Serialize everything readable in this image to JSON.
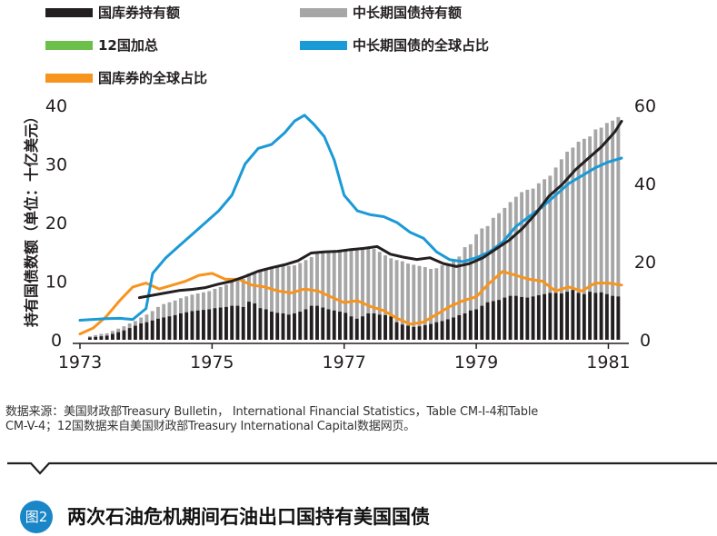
{
  "chart_data": {
    "type": "bar",
    "title": "两次石油危机期间石油出口国持有美国国债",
    "figure_label": "图2",
    "ylabel_left": "持有国债数额（单位：十亿美元）",
    "y_left_range": [
      0,
      40
    ],
    "y_left_ticks": [
      "0",
      "10",
      "20",
      "30",
      "40"
    ],
    "y_right_range": [
      0,
      60
    ],
    "y_right_ticks": [
      "0",
      "20",
      "40",
      "60"
    ],
    "x_range": [
      1973,
      1981.2
    ],
    "x_ticks": [
      "1973",
      "1975",
      "1977",
      "1979",
      "1981"
    ],
    "legend": [
      {
        "key": "treasury_bills",
        "label": "国库券持有额",
        "color": "#231f20",
        "shape": "bar"
      },
      {
        "key": "long_term",
        "label": "中长期国债持有额",
        "color": "#a6a6a6",
        "shape": "bar"
      },
      {
        "key": "total_12",
        "label": "12国加总",
        "color": "#6cbf4a",
        "shape": "bar"
      },
      {
        "key": "lt_share",
        "label": "中长期国债的全球占比",
        "color": "#1a9ad6",
        "shape": "bar"
      },
      {
        "key": "tb_share",
        "label": "国库券的全球占比",
        "color": "#f7941d",
        "shape": "bar"
      }
    ],
    "series": [
      {
        "name": "国库券持有额",
        "axis": "left",
        "type": "stacked-bar",
        "values": [
          0.4,
          0.5,
          0.6,
          0.7,
          1,
          1.3,
          1.6,
          2,
          2.4,
          2.8,
          3,
          3.3,
          3.6,
          3.8,
          4,
          4.2,
          4.5,
          4.7,
          4.9,
          5,
          5.1,
          5.2,
          5.4,
          5.5,
          5.6,
          5.8,
          5.8,
          5.6,
          6.5,
          6.2,
          5.4,
          5.2,
          4.8,
          4.6,
          4.5,
          4.3,
          4.5,
          4.8,
          5.2,
          5.8,
          5.8,
          5.5,
          5.2,
          5.0,
          4.8,
          4.6,
          4.0,
          3.6,
          4.0,
          4.5,
          4.5,
          4.3,
          4.2,
          4.0,
          3.0,
          2.6,
          2.4,
          2.2,
          2.3,
          2.5,
          2.7,
          3.0,
          3.2,
          3.5,
          3.8,
          4.2,
          4.5,
          5.0,
          5.2,
          5.8,
          6.4,
          6.6,
          6.8,
          7.2,
          7.5,
          7.5,
          7.3,
          7.2,
          7.4,
          7.6,
          7.8,
          8.0,
          8.0,
          7.9,
          8.2,
          8.5,
          8.0,
          7.8,
          8.2,
          8.0,
          8.1,
          7.8,
          7.5,
          7.4
        ]
      },
      {
        "name": "中长期国债持有额",
        "axis": "left",
        "type": "stacked-bar",
        "values": [
          0.2,
          0.3,
          0.4,
          0.4,
          0.5,
          0.6,
          0.7,
          0.8,
          0.8,
          1,
          1.3,
          1.6,
          2,
          2.3,
          2.4,
          2.5,
          2.6,
          2.7,
          2.8,
          2.9,
          3,
          3.1,
          3.3,
          3.5,
          3.8,
          4.1,
          4.4,
          4.8,
          4.8,
          5.3,
          6.4,
          6.9,
          7.6,
          7.9,
          8.1,
          8.3,
          8.2,
          8.3,
          8.4,
          8.3,
          8.9,
          9.4,
          9.8,
          10.1,
          10.4,
          10.7,
          11.4,
          12.0,
          11.7,
          11.2,
          11.0,
          10.7,
          10.2,
          9.9,
          10.6,
          10.8,
          10.6,
          10.6,
          10.3,
          9.9,
          9.4,
          9.2,
          9.5,
          9.5,
          9.8,
          10.0,
          11.3,
          11.3,
          12.8,
          13.2,
          13.0,
          14.2,
          14.8,
          15.3,
          16.0,
          16.9,
          17.9,
          18.4,
          18.4,
          19.1,
          19.6,
          20.0,
          21.4,
          22.9,
          23.9,
          24.3,
          25.8,
          26.5,
          26.5,
          27.9,
          28.1,
          29.2,
          29.9,
          30.6
        ]
      },
      {
        "name": "12国加总",
        "axis": "left",
        "type": "line",
        "x": [
          1973.9,
          1974.1,
          1974.3,
          1974.5,
          1974.7,
          1974.9,
          1975.1,
          1975.3,
          1975.5,
          1975.7,
          1975.9,
          1976.1,
          1976.3,
          1976.5,
          1976.7,
          1976.9,
          1977.1,
          1977.3,
          1977.5,
          1977.7,
          1977.9,
          1978.1,
          1978.3,
          1978.5,
          1978.7,
          1978.9,
          1979.1,
          1979.3,
          1979.5,
          1979.7,
          1979.9,
          1980.1,
          1980.3,
          1980.5,
          1980.7,
          1980.9,
          1981.1,
          1981.2
        ],
        "values": [
          7.2,
          7.6,
          8.0,
          8.4,
          8.6,
          8.9,
          9.5,
          10.0,
          10.8,
          11.7,
          12.3,
          12.8,
          13.5,
          14.8,
          15.0,
          15.1,
          15.4,
          15.6,
          15.9,
          14.6,
          14.1,
          13.7,
          14.0,
          13.0,
          12.5,
          13.0,
          14.0,
          15.5,
          17.0,
          19.0,
          21.5,
          24.5,
          26.5,
          29.0,
          31.0,
          33.0,
          35.5,
          37.3
        ]
      },
      {
        "name": "中长期国债的全球占比",
        "axis": "right",
        "type": "line",
        "x": [
          1973,
          1973.2,
          1973.4,
          1973.6,
          1973.8,
          1974,
          1974.1,
          1974.3,
          1974.5,
          1974.7,
          1974.9,
          1975.1,
          1975.3,
          1975.5,
          1975.7,
          1975.9,
          1976.1,
          1976.25,
          1976.4,
          1976.55,
          1976.7,
          1976.85,
          1977,
          1977.2,
          1977.4,
          1977.6,
          1977.8,
          1978,
          1978.2,
          1978.4,
          1978.6,
          1978.8,
          1979,
          1979.2,
          1979.4,
          1979.6,
          1979.8,
          1980,
          1980.2,
          1980.4,
          1980.6,
          1980.8,
          1981,
          1981.2
        ],
        "values": [
          5,
          5.2,
          5.4,
          5.5,
          5.2,
          8,
          17,
          21,
          24,
          27,
          30,
          33,
          37,
          45,
          49,
          50,
          53,
          56,
          57.5,
          55,
          52,
          46,
          37,
          33,
          32,
          31.5,
          30,
          27.5,
          26,
          22.5,
          20.5,
          20,
          21,
          22.5,
          25,
          29,
          31.5,
          34,
          37,
          40,
          42,
          44,
          45.5,
          46.5
        ]
      },
      {
        "name": "国库券的全球占比",
        "axis": "right",
        "type": "line",
        "x": [
          1973,
          1973.2,
          1973.4,
          1973.6,
          1973.8,
          1974,
          1974.2,
          1974.4,
          1974.6,
          1974.8,
          1975,
          1975.2,
          1975.4,
          1975.6,
          1975.8,
          1976,
          1976.2,
          1976.4,
          1976.6,
          1976.8,
          1977,
          1977.2,
          1977.4,
          1977.6,
          1977.8,
          1978,
          1978.2,
          1978.4,
          1978.6,
          1978.8,
          1979,
          1979.2,
          1979.4,
          1979.6,
          1979.8,
          1980,
          1980.2,
          1980.4,
          1980.6,
          1980.8,
          1981,
          1981.2
        ],
        "values": [
          1.5,
          3,
          6,
          10,
          13.5,
          14.5,
          13,
          14,
          15,
          16.5,
          17,
          15.5,
          15.5,
          14,
          13.5,
          12.5,
          12,
          13,
          12.5,
          11,
          9.5,
          10,
          8.5,
          7.5,
          5.5,
          4,
          4.5,
          6.5,
          8.5,
          10,
          11,
          14.5,
          17.5,
          16.5,
          15.5,
          15,
          12.5,
          13.5,
          12.5,
          14.5,
          14.5,
          14
        ]
      }
    ]
  },
  "note": {
    "line1": "数据来源：美国财政部Treasury Bulletin， International Financial Statistics，Table CM-I-4和Table",
    "line2": "CM-V-4；12国数据来自美国财政部Treasury International Capital数据网页。"
  }
}
